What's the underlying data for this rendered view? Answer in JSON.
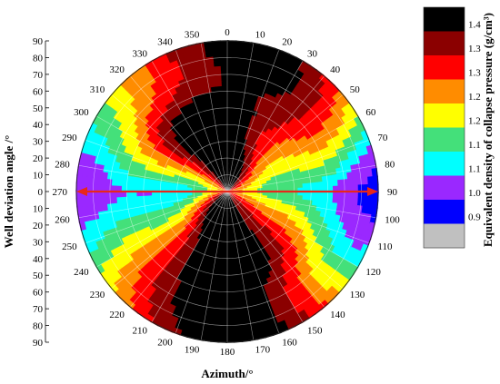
{
  "chart_data": {
    "type": "heatmap",
    "projection": "polar",
    "xlabel": "Azimuth/°",
    "ylabel": "Well deviation angle /°",
    "colorbar_label": "Equivalent density of collapse pressure (g/cm³)",
    "azimuth_ticks": [
      "0",
      "10",
      "20",
      "30",
      "40",
      "50",
      "60",
      "70",
      "80",
      "90",
      "100",
      "110",
      "120",
      "130",
      "140",
      "150",
      "160",
      "170",
      "180",
      "190",
      "200",
      "210",
      "220",
      "230",
      "240",
      "250",
      "260",
      "270",
      "280",
      "290",
      "300",
      "310",
      "320",
      "330",
      "340",
      "350"
    ],
    "deviation_ticks_up": [
      "90",
      "80",
      "70",
      "60",
      "50",
      "40",
      "30",
      "20",
      "10",
      "0"
    ],
    "deviation_ticks_down": [
      "10",
      "20",
      "30",
      "40",
      "50",
      "60",
      "70",
      "80",
      "90"
    ],
    "deviation_range": [
      0,
      90
    ],
    "azimuth_range": [
      0,
      360
    ],
    "colorbar": {
      "labels": [
        "1.4",
        "1.3",
        "1.3",
        "1.2",
        "1.2",
        "1.1",
        "1.1",
        "1.0",
        "0.9"
      ],
      "colors": [
        "#000000",
        "#8b0000",
        "#ff0000",
        "#ff8c00",
        "#ffff00",
        "#44e07a",
        "#00ffff",
        "#9a28ff",
        "#0000ff",
        "#c0c0c0"
      ]
    },
    "arrow_azimuths": [
      90,
      270
    ],
    "arrow_color": "#e8271a",
    "levels": [
      {
        "r": 0,
        "a": 0,
        "v": 1.36
      },
      {
        "r": 0,
        "a": 90,
        "v": 1.17
      },
      {
        "r": 0,
        "a": 180,
        "v": 1.36
      },
      {
        "r": 0,
        "a": 270,
        "v": 1.17
      },
      {
        "r": 5,
        "a": 0,
        "v": 1.36
      },
      {
        "r": 5,
        "a": 90,
        "v": 1.17
      },
      {
        "r": 5,
        "a": 180,
        "v": 1.36
      },
      {
        "r": 5,
        "a": 270,
        "v": 1.17
      },
      {
        "r": 25,
        "a": 0,
        "v": 1.34
      },
      {
        "r": 25,
        "a": 90,
        "v": 1.08
      },
      {
        "r": 25,
        "a": 180,
        "v": 1.34
      },
      {
        "r": 25,
        "a": 270,
        "v": 1.08
      },
      {
        "r": 50,
        "a": 0,
        "v": 1.39
      },
      {
        "r": 50,
        "a": 90,
        "v": 0.98
      },
      {
        "r": 50,
        "a": 180,
        "v": 1.39
      },
      {
        "r": 50,
        "a": 270,
        "v": 0.98
      },
      {
        "r": 75,
        "a": 0,
        "v": 1.33
      },
      {
        "r": 75,
        "a": 90,
        "v": 0.95
      },
      {
        "r": 75,
        "a": 180,
        "v": 1.33
      },
      {
        "r": 75,
        "a": 270,
        "v": 0.95
      },
      {
        "r": 90,
        "a": 0,
        "v": 1.3
      },
      {
        "r": 90,
        "a": 90,
        "v": 0.95
      },
      {
        "r": 90,
        "a": 180,
        "v": 1.3
      },
      {
        "r": 90,
        "a": 270,
        "v": 0.95
      }
    ]
  }
}
